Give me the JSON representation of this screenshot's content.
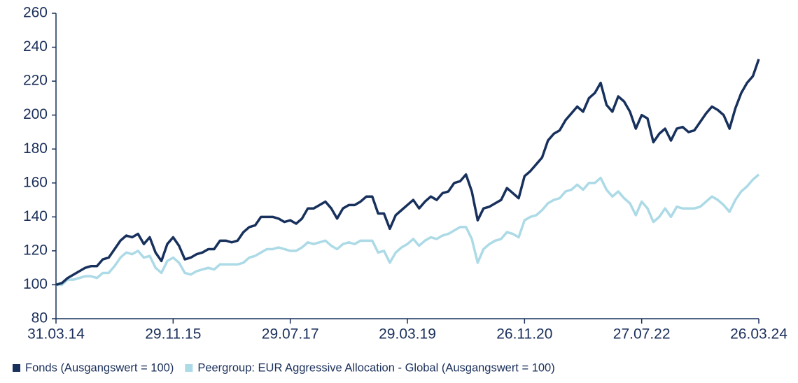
{
  "chart_data": {
    "type": "line",
    "categories": [
      "31.03.14",
      null,
      null,
      null,
      null,
      null,
      null,
      null,
      null,
      null,
      null,
      null,
      null,
      null,
      null,
      null,
      null,
      null,
      null,
      null,
      "29.11.15",
      null,
      null,
      null,
      null,
      null,
      null,
      null,
      null,
      null,
      null,
      null,
      null,
      null,
      null,
      null,
      null,
      null,
      null,
      null,
      "29.07.17",
      null,
      null,
      null,
      null,
      null,
      null,
      null,
      null,
      null,
      null,
      null,
      null,
      null,
      null,
      null,
      null,
      null,
      null,
      null,
      "29.03.19",
      null,
      null,
      null,
      null,
      null,
      null,
      null,
      null,
      null,
      null,
      null,
      null,
      null,
      null,
      null,
      null,
      null,
      null,
      null,
      "26.11.20",
      null,
      null,
      null,
      null,
      null,
      null,
      null,
      null,
      null,
      null,
      null,
      null,
      null,
      null,
      null,
      null,
      null,
      null,
      null,
      "27.07.22",
      null,
      null,
      null,
      null,
      null,
      null,
      null,
      null,
      null,
      null,
      null,
      null,
      null,
      null,
      null,
      null,
      null,
      null,
      null,
      "26.03.24"
    ],
    "series": [
      {
        "name": "Fonds (Ausgangswert = 100)",
        "color": "#17305c",
        "values": [
          100,
          101,
          104,
          106,
          108,
          110,
          111,
          111,
          115,
          116,
          121,
          126,
          129,
          128,
          130,
          124,
          128,
          119,
          114,
          124,
          128,
          123,
          115,
          116,
          118,
          119,
          121,
          121,
          126,
          126,
          125,
          126,
          131,
          134,
          135,
          140,
          140,
          140,
          139,
          137,
          138,
          136,
          139,
          145,
          145,
          147,
          149,
          145,
          139,
          145,
          147,
          147,
          149,
          152,
          152,
          142,
          142,
          133,
          141,
          144,
          147,
          150,
          145,
          149,
          152,
          150,
          154,
          155,
          160,
          161,
          165,
          155,
          138,
          145,
          146,
          148,
          150,
          157,
          154,
          151,
          164,
          167,
          171,
          175,
          185,
          189,
          191,
          197,
          201,
          205,
          202,
          210,
          213,
          219,
          206,
          202,
          211,
          208,
          202,
          192,
          200,
          198,
          184,
          189,
          192,
          185,
          192,
          193,
          190,
          191,
          196,
          201,
          205,
          203,
          200,
          192,
          204,
          213,
          219,
          223,
          233
        ]
      },
      {
        "name": "Peergroup: EUR Aggressive Allocation - Global (Ausgangswert = 100)",
        "color": "#acdae6",
        "values": [
          100,
          100,
          103,
          103,
          104,
          105,
          105,
          104,
          107,
          107,
          111,
          116,
          119,
          118,
          120,
          116,
          117,
          110,
          107,
          114,
          116,
          113,
          107,
          106,
          108,
          109,
          110,
          109,
          112,
          112,
          112,
          112,
          113,
          116,
          117,
          119,
          121,
          121,
          122,
          121,
          120,
          120,
          122,
          125,
          124,
          125,
          126,
          123,
          121,
          124,
          125,
          124,
          126,
          126,
          126,
          119,
          120,
          113,
          119,
          122,
          124,
          127,
          123,
          126,
          128,
          127,
          129,
          130,
          132,
          134,
          134,
          127,
          113,
          121,
          124,
          126,
          127,
          131,
          130,
          128,
          138,
          140,
          141,
          144,
          148,
          150,
          151,
          155,
          156,
          159,
          156,
          160,
          160,
          163,
          156,
          152,
          155,
          151,
          148,
          141,
          149,
          145,
          137,
          140,
          145,
          140,
          146,
          145,
          145,
          145,
          146,
          149,
          152,
          150,
          147,
          143,
          150,
          155,
          158,
          162,
          165
        ]
      }
    ],
    "ylim": [
      80,
      260
    ],
    "yticks": [
      80,
      100,
      120,
      140,
      160,
      180,
      200,
      220,
      240,
      260
    ]
  }
}
